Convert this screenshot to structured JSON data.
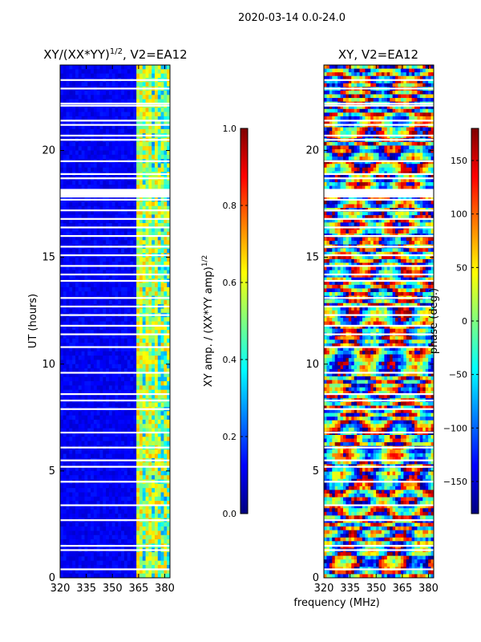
{
  "figure": {
    "suptitle": "2020-03-14 0.0-24.0",
    "xlabel": "frequency (MHz)"
  },
  "chart_data": [
    {
      "type": "heatmap",
      "title_main": "XY/(XX*YY)",
      "title_sup": "1/2",
      "title_rest": ", V2=EA12",
      "ylabel": "UT (hours)",
      "xlim": [
        320,
        383
      ],
      "ylim": [
        0,
        24
      ],
      "xticks": [
        320,
        335,
        350,
        365,
        380
      ],
      "yticks": [
        0,
        5,
        10,
        15,
        20
      ],
      "colorbar": {
        "label_main": "XY amp. / (XX*YY amp)",
        "label_sup": "1/2",
        "range": [
          0.0,
          1.0
        ],
        "ticks": [
          "0.0",
          "0.2",
          "0.4",
          "0.6",
          "0.8",
          "1.0"
        ],
        "tick_values": [
          0.0,
          0.2,
          0.4,
          0.6,
          0.8,
          1.0
        ]
      }
    },
    {
      "type": "heatmap",
      "title": "XY, V2=EA12",
      "xlim": [
        320,
        383
      ],
      "ylim": [
        0,
        24
      ],
      "xticks": [
        320,
        335,
        350,
        365,
        380
      ],
      "yticks": [
        0,
        5,
        10,
        15,
        20
      ],
      "colorbar": {
        "label": "phase (deg.)",
        "range": [
          -180,
          180
        ],
        "ticks": [
          "150",
          "100",
          "50",
          "0",
          "−50",
          "−100",
          "−150"
        ],
        "tick_values": [
          150,
          100,
          50,
          0,
          -50,
          -100,
          -150
        ]
      }
    }
  ],
  "colors": {
    "jet": [
      "#00007f",
      "#0000ff",
      "#007fff",
      "#00ffff",
      "#7fff7f",
      "#ffff00",
      "#ff7f00",
      "#ff0000",
      "#7f0000"
    ]
  }
}
